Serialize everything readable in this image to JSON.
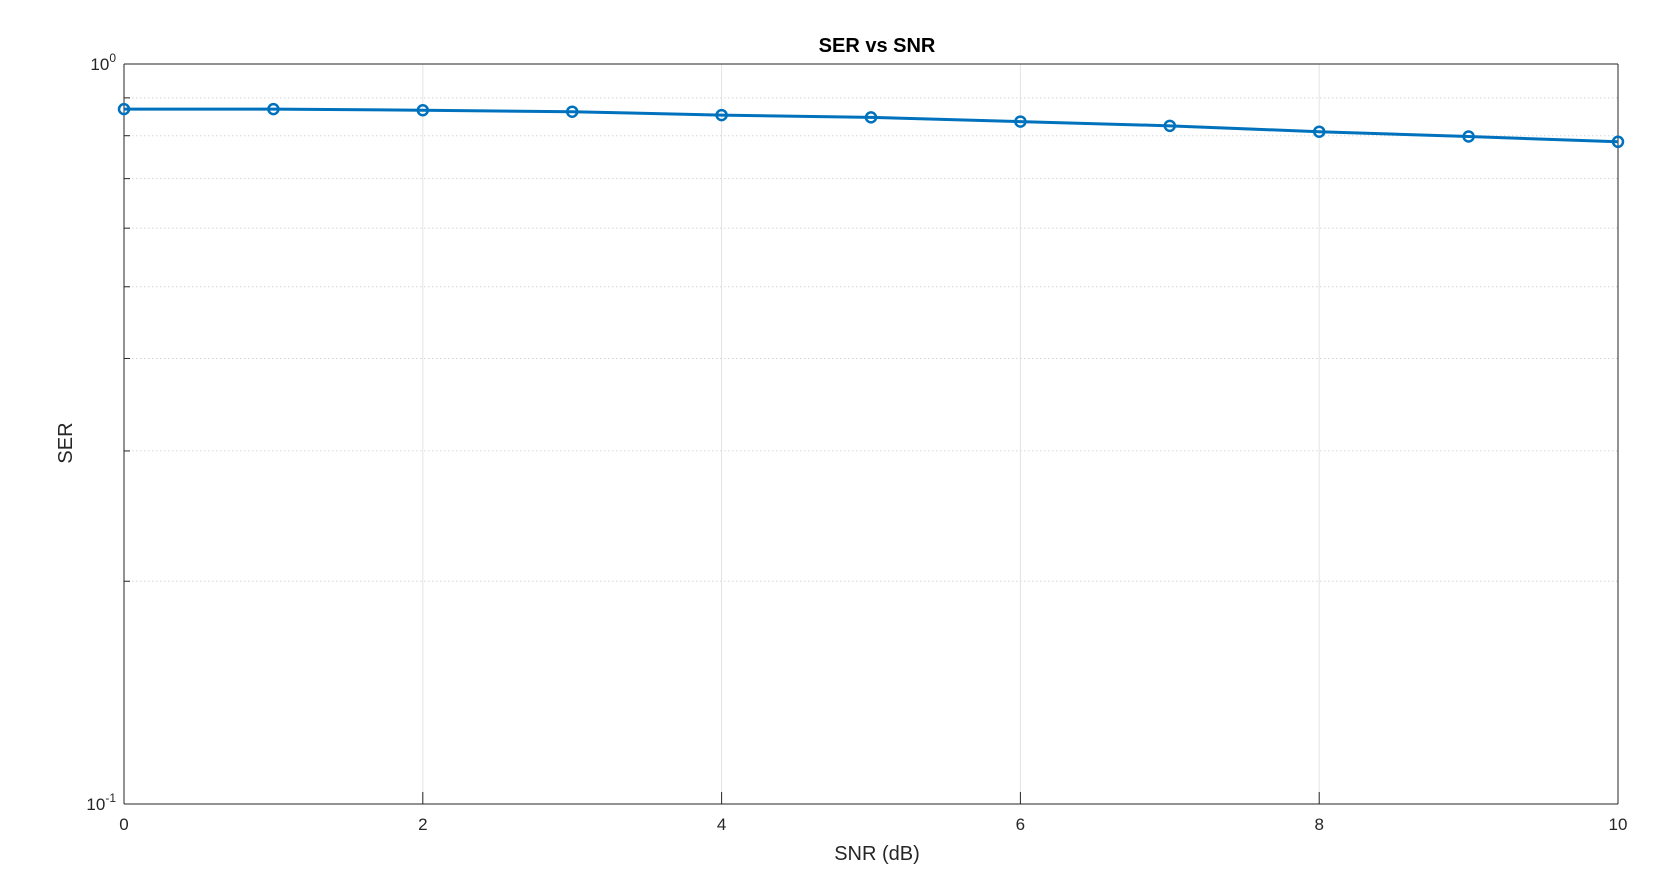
{
  "chart_data": {
    "type": "line",
    "title": "SER vs SNR",
    "xlabel": "SNR (dB)",
    "ylabel": "SER",
    "yscale": "log",
    "xlim": [
      0,
      10
    ],
    "ylim": [
      0.1,
      1
    ],
    "grid": true,
    "legend": "none",
    "x_ticks": [
      "0",
      "2",
      "4",
      "6",
      "8",
      "10"
    ],
    "y_ticks": [
      {
        "base": "10",
        "exp": "0",
        "value": 1
      },
      {
        "base": "10",
        "exp": "-1",
        "value": 0.1
      }
    ],
    "series": [
      {
        "color": "#0072BD",
        "marker": "circle",
        "x": [
          0,
          1,
          2,
          3,
          4,
          5,
          6,
          7,
          8,
          9,
          10
        ],
        "y": [
          0.869,
          0.869,
          0.866,
          0.862,
          0.853,
          0.847,
          0.836,
          0.825,
          0.81,
          0.798,
          0.785
        ]
      }
    ]
  }
}
